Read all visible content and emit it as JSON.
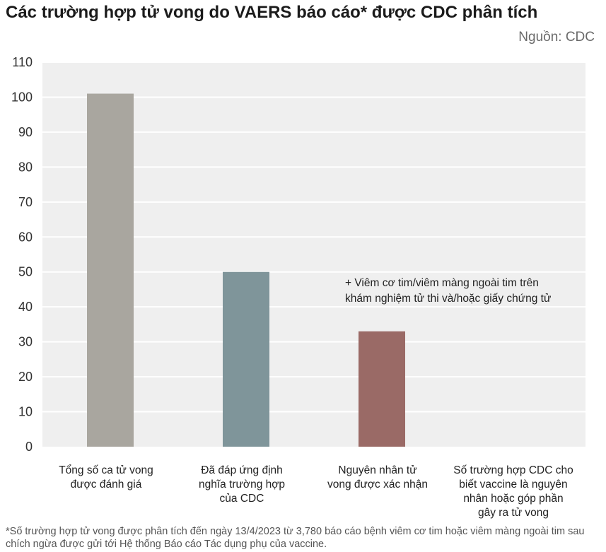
{
  "title": "Các trường hợp tử vong do VAERS báo cáo* được CDC phân tích",
  "source": "Nguồn: CDC",
  "footnote": "*Số trường hợp tử vong được phân tích đến ngày 13/4/2023 từ 3,780 báo cáo bệnh viêm cơ tim hoặc viêm màng ngoài tim sau chích ngừa được gửi tới Hệ thống Báo cáo Tác dụng phụ của vaccine.",
  "colors": {
    "plot_background": "#efefef",
    "gridline": "#ffffff"
  },
  "chart_data": {
    "type": "bar",
    "categories": [
      [
        "Tổng số ca tử vong",
        "được đánh giá"
      ],
      [
        "Đã đáp ứng định",
        "nghĩa trường hợp",
        "của CDC"
      ],
      [
        "Nguyên nhân tử",
        "vong được xác nhận"
      ],
      [
        "Số trường hợp CDC cho",
        "biết vaccine là nguyên",
        "nhân hoặc góp phần",
        "gây ra tử vong"
      ]
    ],
    "values": [
      101,
      50,
      33,
      0
    ],
    "bar_colors": [
      "#a9a69f",
      "#7f959a",
      "#9a6a66",
      "#9a6a66"
    ],
    "ylim": [
      0,
      110
    ],
    "yticks": [
      0,
      10,
      20,
      30,
      40,
      50,
      60,
      70,
      80,
      90,
      100,
      110
    ],
    "grid": true,
    "annotation": [
      "+ Viêm cơ tim/viêm màng ngoài tim trên",
      "khám nghiệm tử thi và/hoặc giấy chứng tử"
    ]
  }
}
